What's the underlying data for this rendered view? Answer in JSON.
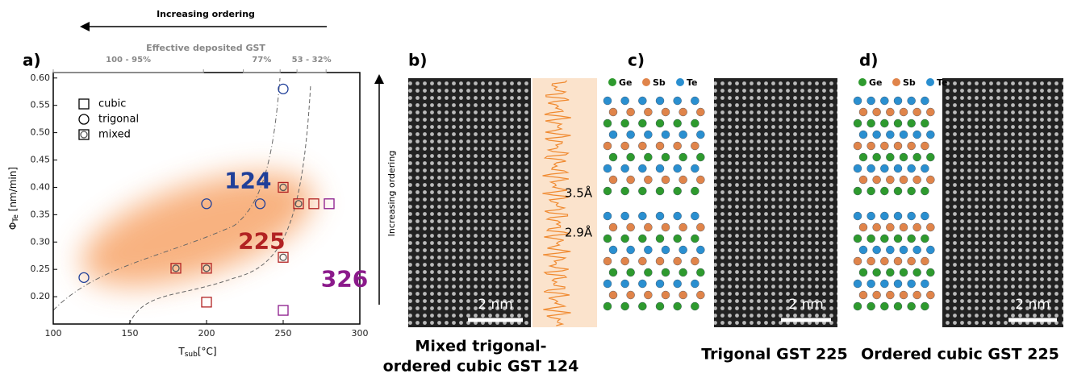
{
  "chart_data": {
    "type": "scatter",
    "panel_label": "a)",
    "top_arrow_label": "Increasing ordering",
    "side_arrow_label": "Increasing ordering",
    "top_axis_title": "Effective deposited GST",
    "top_ranges": [
      {
        "label": "100 - 95%",
        "from": 100,
        "to": 198
      },
      {
        "label": "77%",
        "from": 224,
        "to": 248
      },
      {
        "label": "53 - 32%",
        "from": 259,
        "to": 278
      }
    ],
    "xlabel_symbol": "T",
    "xlabel_subscript": "sub",
    "xlabel_unit": "[°C]",
    "ylabel_symbol": "Φ",
    "ylabel_subscript": "Te",
    "ylabel_unit": " [nm/min]",
    "xlim": [
      100,
      300
    ],
    "xticks": [
      100,
      150,
      200,
      250,
      300
    ],
    "ylim": [
      0.15,
      0.61
    ],
    "yticks": [
      {
        "value": 0.2,
        "label": "0.20"
      },
      {
        "value": 0.25,
        "label": "0.25"
      },
      {
        "value": 0.3,
        "label": "0.30"
      },
      {
        "value": 0.35,
        "label": "0.35"
      },
      {
        "value": 0.4,
        "label": "0.40"
      },
      {
        "value": 0.45,
        "label": "0.45"
      },
      {
        "value": 0.5,
        "label": "0.50"
      },
      {
        "value": 0.55,
        "label": "0.55"
      },
      {
        "value": 0.6,
        "label": "0.60"
      }
    ],
    "series": [
      {
        "name": "cubic",
        "marker": "square",
        "x": [
          200,
          250,
          270,
          280
        ],
        "values": [
          0.19,
          0.175,
          0.37,
          0.37
        ],
        "point_colors": [
          "#b22222",
          "#8b1a8b",
          "#b22222",
          "#8b1a8b"
        ]
      },
      {
        "name": "trigonal",
        "marker": "circle",
        "x": [
          120,
          200,
          235,
          250
        ],
        "values": [
          0.235,
          0.37,
          0.37,
          0.58
        ],
        "point_colors": [
          "#1f3f99",
          "#1f3f99",
          "#1f3f99",
          "#1f3f99"
        ]
      },
      {
        "name": "mixed",
        "marker": "mixed",
        "x": [
          180,
          200,
          250,
          250,
          260
        ],
        "values": [
          0.252,
          0.252,
          0.272,
          0.4,
          0.37
        ],
        "point_colors": [
          "#b22222",
          "#b22222",
          "#b22222",
          "#b22222",
          "#b22222"
        ]
      }
    ],
    "annotations": [
      {
        "text": "124",
        "x": 227,
        "y": 0.41,
        "color": "#1f3f99"
      },
      {
        "text": "225",
        "x": 236,
        "y": 0.3,
        "color": "#b22222"
      },
      {
        "text": "326",
        "x": 290,
        "y": 0.23,
        "color": "#8b1a8b"
      }
    ]
  },
  "panels": [
    {
      "label": "b)",
      "scale_bar": "2 nm",
      "distances": [
        "3.5Å",
        "2.9Å"
      ],
      "caption": [
        "Mixed trigonal-",
        "ordered cubic GST 124"
      ]
    },
    {
      "label": "c)",
      "scale_bar": "2 nm",
      "atom_legend": [
        "Ge",
        "Sb",
        "Te"
      ],
      "caption": [
        "Trigonal GST 225"
      ]
    },
    {
      "label": "d)",
      "scale_bar": "2 nm",
      "atom_legend": [
        "Ge",
        "Sb",
        "Te"
      ],
      "caption": [
        "Ordered cubic GST 225"
      ]
    }
  ]
}
